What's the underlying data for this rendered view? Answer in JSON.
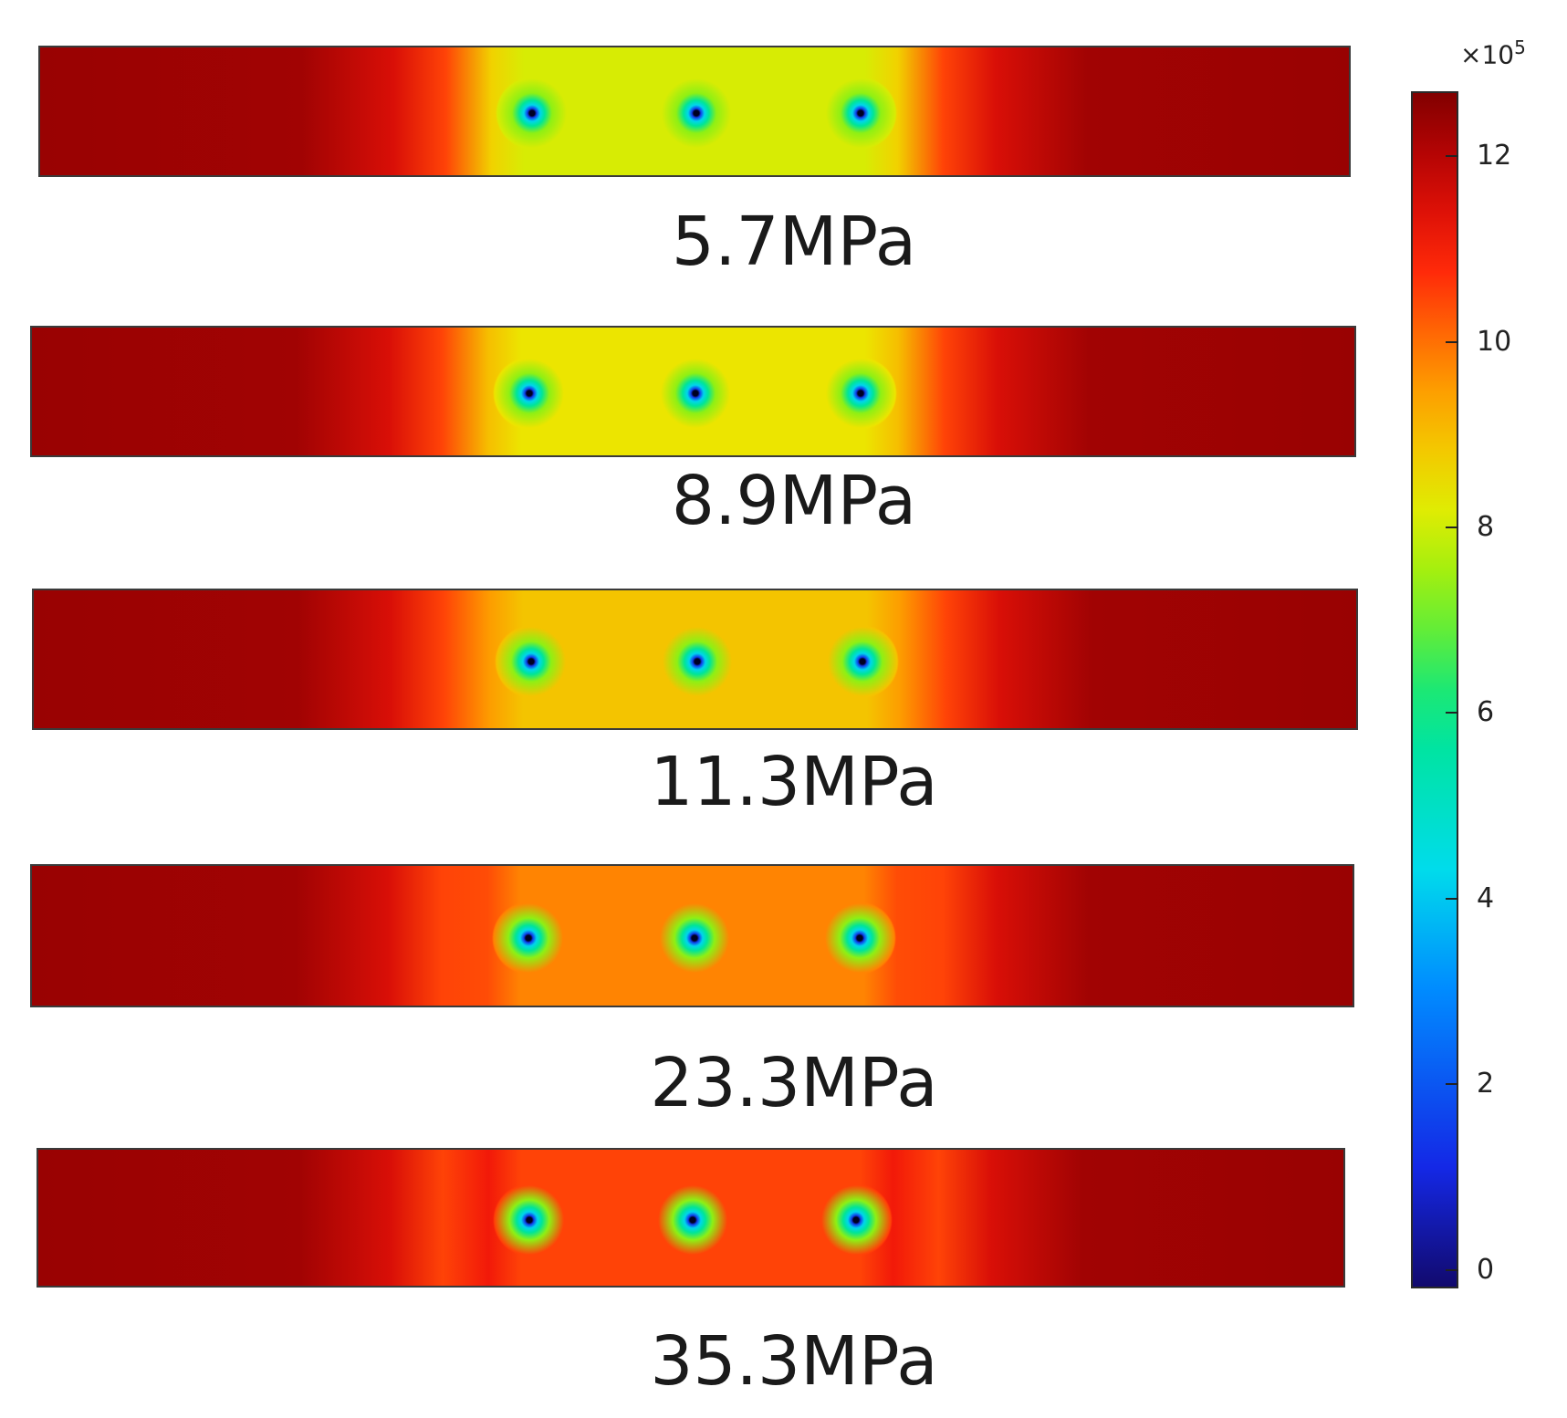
{
  "chart_data": {
    "type": "heatmap",
    "title": "",
    "colormap": "rainbow",
    "colorbar": {
      "multiplier": "×10",
      "multiplier_exponent": "5",
      "range": [
        -0.2,
        12.7
      ],
      "ticks": [
        0,
        2,
        4,
        6,
        8,
        10,
        12
      ],
      "tick_labels": [
        "0",
        "2",
        "4",
        "6",
        "8",
        "10",
        "12"
      ]
    },
    "panels": [
      {
        "label": "5.7MPa",
        "edge_value": 12.4,
        "center_value": 8.1,
        "well_value": 0
      },
      {
        "label": "8.9MPa",
        "edge_value": 12.4,
        "center_value": 8.4,
        "well_value": 0
      },
      {
        "label": "11.3MPa",
        "edge_value": 12.4,
        "center_value": 8.9,
        "well_value": 0
      },
      {
        "label": "23.3MPa",
        "edge_value": 12.4,
        "center_value": 9.8,
        "well_value": 0
      },
      {
        "label": "35.3MPa",
        "edge_value": 12.4,
        "center_value": 10.5,
        "well_value": 0
      }
    ],
    "wells_per_panel": 3
  }
}
